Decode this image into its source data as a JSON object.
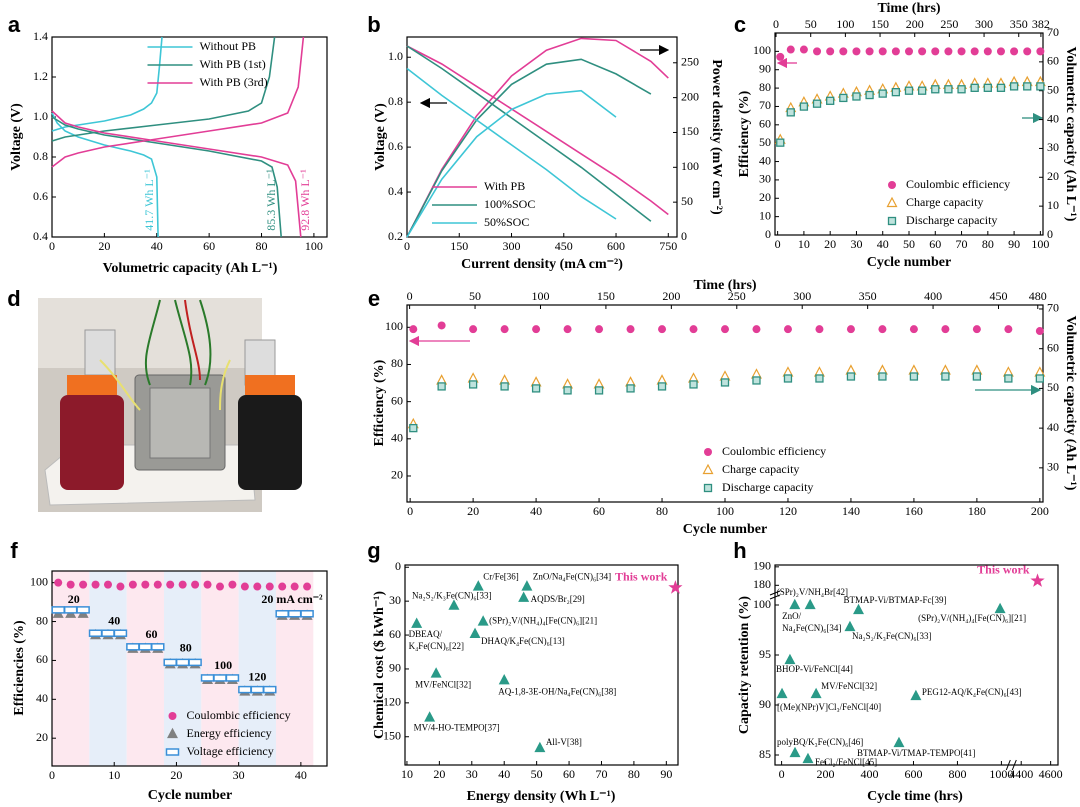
{
  "chart_data": [
    {
      "type": "line",
      "panel": "a",
      "xlabel": "Volumetric capacity (Ah L⁻¹)",
      "ylabel": "Voltage (V)",
      "xlim": [
        0,
        105
      ],
      "ylim": [
        0.4,
        1.4
      ],
      "xticks": [
        0,
        20,
        40,
        60,
        80,
        100
      ],
      "yticks": [
        0.4,
        0.6,
        0.8,
        {
          "value": 1,
          "label": "1.0"
        },
        1.2,
        1.4
      ],
      "legend": "upper center",
      "series": [
        {
          "name": "Without PB",
          "color": "#3ec6d6",
          "x": [
            0,
            2,
            5,
            10,
            20,
            30,
            35,
            38,
            40,
            40.5,
            null,
            0,
            5,
            10,
            20,
            30,
            35,
            38,
            40,
            41,
            42
          ],
          "values": [
            1.02,
            0.97,
            0.93,
            0.9,
            0.86,
            0.83,
            0.81,
            0.79,
            0.7,
            0.4,
            null,
            0.93,
            0.95,
            0.96,
            0.98,
            1.01,
            1.04,
            1.07,
            1.12,
            1.25,
            1.4
          ]
        },
        {
          "name": "With PB (1st)",
          "color": "#2f8f80",
          "x": [
            0,
            5,
            10,
            20,
            40,
            60,
            80,
            84,
            86,
            87.5,
            null,
            0,
            5,
            10,
            20,
            40,
            60,
            75,
            80,
            83,
            85
          ],
          "values": [
            1.0,
            0.96,
            0.94,
            0.91,
            0.87,
            0.83,
            0.78,
            0.75,
            0.65,
            0.4,
            null,
            0.88,
            0.9,
            0.91,
            0.93,
            0.96,
            0.99,
            1.03,
            1.07,
            1.2,
            1.4
          ]
        },
        {
          "name": "With PB (3rd)",
          "color": "#e23d96",
          "x": [
            0,
            5,
            10,
            20,
            40,
            60,
            80,
            90,
            93,
            95,
            null,
            0,
            5,
            10,
            20,
            40,
            60,
            80,
            90,
            94,
            96
          ],
          "values": [
            1.03,
            0.97,
            0.95,
            0.92,
            0.88,
            0.84,
            0.8,
            0.76,
            0.68,
            0.4,
            null,
            0.75,
            0.8,
            0.82,
            0.85,
            0.89,
            0.93,
            0.97,
            1.02,
            1.15,
            1.4
          ]
        }
      ],
      "annotations": [
        "41.7 Wh L⁻¹",
        "85.3 Wh L⁻¹",
        "92.8 Wh L⁻¹"
      ]
    },
    {
      "type": "line",
      "panel": "b",
      "xlabel": "Current density (mA cm⁻²)",
      "ylabel": "Voltage (V)",
      "y2label": "Power density (mW cm⁻²)",
      "xlim": [
        0,
        775
      ],
      "ylim": [
        0.2,
        1.09
      ],
      "y2lim": [
        0,
        287
      ],
      "xticks": [
        0,
        150,
        300,
        450,
        600,
        750
      ],
      "yticks": [
        0.2,
        0.4,
        0.6,
        0.8,
        {
          "value": 1,
          "label": "1.0"
        }
      ],
      "y2ticks": [
        0,
        50,
        100,
        150,
        200,
        250
      ],
      "legend": "lower left",
      "series": [
        {
          "name": "With PB",
          "color": "#e23d96",
          "x": [
            0,
            100,
            200,
            300,
            400,
            500,
            600,
            700,
            750
          ],
          "values": [
            1.05,
            0.97,
            0.87,
            0.77,
            0.67,
            0.57,
            0.47,
            0.36,
            0.3
          ],
          "power": [
            0,
            97,
            174,
            231,
            268,
            285,
            282,
            252,
            228
          ]
        },
        {
          "name": "100%SOC",
          "color": "#2f8f80",
          "x": [
            0,
            100,
            200,
            300,
            400,
            500,
            600,
            700
          ],
          "values": [
            1.05,
            0.95,
            0.84,
            0.73,
            0.62,
            0.51,
            0.39,
            0.27
          ],
          "power": [
            0,
            95,
            168,
            219,
            248,
            255,
            234,
            205
          ]
        },
        {
          "name": "50%SOC",
          "color": "#3ec6d6",
          "x": [
            0,
            100,
            200,
            300,
            400,
            500,
            600
          ],
          "values": [
            0.95,
            0.83,
            0.72,
            0.61,
            0.5,
            0.38,
            0.28
          ],
          "power": [
            0,
            83,
            144,
            183,
            205,
            210,
            172
          ]
        }
      ]
    },
    {
      "type": "scatter",
      "panel": "c",
      "xlabel": "Cycle number",
      "ylabel": "Efficiency (%)",
      "y2label": "Volumetric capacity (Ah L⁻¹)",
      "x2label": "Time (hrs)",
      "xlim": [
        -1,
        101
      ],
      "ylim": [
        0,
        110
      ],
      "y2lim": [
        0,
        70
      ],
      "x2lim": [
        -1.5,
        385
      ],
      "xticks": [
        0,
        10,
        20,
        30,
        40,
        50,
        60,
        70,
        80,
        90,
        100
      ],
      "yticks": [
        0,
        10,
        20,
        30,
        40,
        50,
        60,
        70,
        80,
        90,
        100
      ],
      "y2ticks": [
        0,
        10,
        20,
        30,
        40,
        50,
        60,
        70
      ],
      "x2ticks": [
        0,
        50,
        100,
        150,
        200,
        250,
        300,
        350,
        382
      ],
      "legend": "lower center",
      "x": [
        1,
        5,
        10,
        15,
        20,
        25,
        30,
        35,
        40,
        45,
        50,
        55,
        60,
        65,
        70,
        75,
        80,
        85,
        90,
        95,
        100
      ],
      "series": [
        {
          "name": "Coulombic efficiency",
          "color": "#e23d96",
          "marker": "circle",
          "values": [
            97,
            101,
            101,
            100,
            100,
            100,
            100,
            100,
            100,
            100,
            100,
            100,
            100,
            100,
            100,
            100,
            100,
            100,
            100,
            100,
            100
          ]
        },
        {
          "name": "Charge capacity",
          "color": "#e8a030",
          "marker": "triangle-open",
          "axis": "y2",
          "values": [
            33,
            44,
            46,
            47,
            48,
            49,
            49.5,
            50,
            50.5,
            51,
            51.5,
            51.5,
            52,
            52,
            52,
            52.5,
            52.5,
            52.5,
            53,
            53,
            53
          ]
        },
        {
          "name": "Discharge capacity",
          "color": "#2f8f80",
          "marker": "square",
          "axis": "y2",
          "values": [
            32,
            42.5,
            44.5,
            45.5,
            46.5,
            47.5,
            48,
            48.5,
            49,
            49.5,
            50,
            50,
            50.5,
            50.5,
            50.5,
            51,
            51,
            51,
            51.5,
            51.5,
            51.5
          ]
        }
      ]
    },
    {
      "type": "image",
      "panel": "d"
    },
    {
      "type": "scatter",
      "panel": "e",
      "xlabel": "Cycle number",
      "ylabel": "Efficiency (%)",
      "y2label": "Volumetric capacity (Ah L⁻¹)",
      "x2label": "Time (hrs)",
      "xlim": [
        -1,
        201
      ],
      "ylim": [
        6,
        112
      ],
      "y2lim": [
        21.4,
        71
      ],
      "x2lim": [
        -2,
        484
      ],
      "xticks": [
        0,
        20,
        40,
        60,
        80,
        100,
        120,
        140,
        160,
        180,
        200
      ],
      "yticks": [
        20,
        40,
        60,
        80,
        100
      ],
      "y2ticks": [
        30,
        40,
        50,
        60,
        70
      ],
      "x2ticks": [
        0,
        50,
        100,
        150,
        200,
        250,
        300,
        350,
        400,
        450,
        480
      ],
      "legend": "lower center",
      "x": [
        1,
        10,
        20,
        30,
        40,
        50,
        60,
        70,
        80,
        90,
        100,
        110,
        120,
        130,
        140,
        150,
        160,
        170,
        180,
        190,
        200
      ],
      "series": [
        {
          "name": "Coulombic efficiency",
          "color": "#e23d96",
          "marker": "circle",
          "values": [
            99,
            101,
            99,
            99,
            99,
            99,
            99,
            99,
            99,
            99,
            99,
            99,
            99,
            99,
            99,
            99,
            99,
            99,
            99,
            99,
            98
          ]
        },
        {
          "name": "Charge capacity",
          "color": "#e8a030",
          "marker": "triangle-open",
          "axis": "y2",
          "values": [
            41,
            52,
            52.5,
            52,
            51.5,
            51,
            51,
            51.5,
            52,
            52.5,
            53,
            53.5,
            54,
            54,
            54.5,
            54.5,
            54.5,
            54.5,
            54.5,
            54,
            54
          ]
        },
        {
          "name": "Discharge capacity",
          "color": "#2f8f80",
          "marker": "square",
          "axis": "y2",
          "values": [
            40,
            50.5,
            51,
            50.5,
            50,
            49.5,
            49.5,
            50,
            50.5,
            51,
            51.5,
            52,
            52.5,
            52.5,
            53,
            53,
            53,
            53,
            53,
            52.5,
            52.5
          ]
        }
      ]
    },
    {
      "type": "scatter",
      "panel": "f",
      "xlabel": "Cycle number",
      "ylabel": "Efficiencies (%)",
      "xlim": [
        0,
        44.2
      ],
      "ylim": [
        5.7,
        106
      ],
      "xticks": [
        0,
        10,
        20,
        30,
        40
      ],
      "yticks": [
        20,
        40,
        60,
        80,
        100
      ],
      "legend": "lower center",
      "x": [
        1,
        3,
        5,
        7,
        9,
        11,
        13,
        15,
        17,
        19,
        21,
        23,
        25,
        27,
        29,
        31,
        33,
        35,
        37,
        39,
        41
      ],
      "series": [
        {
          "name": "Coulombic efficiency",
          "color": "#e23d96",
          "marker": "circle",
          "values": [
            100,
            99,
            99,
            99,
            99,
            98,
            99,
            99,
            99,
            99,
            99,
            99,
            99,
            98,
            99,
            98,
            98,
            98,
            98,
            98,
            98
          ]
        },
        {
          "name": "Energy efficiency",
          "color": "#808080",
          "marker": "triangle",
          "values": [
            84,
            84,
            84,
            73,
            73,
            73,
            66,
            66,
            66,
            58,
            58,
            58,
            50,
            50,
            50,
            44,
            44,
            44,
            83,
            83,
            83
          ]
        },
        {
          "name": "Voltage efficiency",
          "color": "#3a8fd8",
          "marker": "rect-open",
          "values": [
            86,
            86,
            86,
            74,
            74,
            74,
            67,
            67,
            67,
            59,
            59,
            59,
            51,
            51,
            51,
            45,
            45,
            45,
            84,
            84,
            84
          ]
        }
      ],
      "annotations": [
        "20",
        "40",
        "60",
        "80",
        "100",
        "120",
        "20 mA cm⁻²"
      ]
    },
    {
      "type": "scatter",
      "panel": "g",
      "xlabel": "Energy density (Wh L⁻¹)",
      "ylabel": "Chemical cost ($ kWh⁻¹)",
      "xlim": [
        9.4,
        93.6
      ],
      "ylim": [
        -2,
        175
      ],
      "yreverse": true,
      "xticks": [
        10,
        20,
        30,
        40,
        50,
        60,
        70,
        80,
        90
      ],
      "yticks": [
        0,
        30,
        60,
        90,
        120,
        150
      ],
      "marker_color": "#2a9a88",
      "points": [
        {
          "label": [
            "Cr/Fe[36]"
          ],
          "x": 32,
          "y": 17
        },
        {
          "label": [
            "ZnO/Na₄Fe(CN)₆[34]"
          ],
          "x": 47,
          "y": 17
        },
        {
          "label": [
            "AQDS/Br₂[29]"
          ],
          "x": 46,
          "y": 27
        },
        {
          "label": [
            "Na₂S₂/K₃Fe(CN)₆[33]"
          ],
          "x": 24.5,
          "y": 34
        },
        {
          "label": [
            "(SPr)₂V/(NH₄)₄[Fe(CN)₆][21]"
          ],
          "x": 33.5,
          "y": 48
        },
        {
          "label": [
            "DBEAQ/",
            "K₄Fe(CN)₆[22]"
          ],
          "x": 13,
          "y": 50
        },
        {
          "label": [
            "DHAQ/K₄Fe(CN)₆[13]"
          ],
          "x": 31,
          "y": 59
        },
        {
          "label": [
            "MV/FeNCl[32]"
          ],
          "x": 19,
          "y": 94
        },
        {
          "label": [
            "AQ-1,8-3E-OH/Na₄Fe(CN)₆[38]"
          ],
          "x": 40,
          "y": 100
        },
        {
          "label": [
            "MV/4-HO-TEMPO[37]"
          ],
          "x": 17,
          "y": 133
        },
        {
          "label": [
            "All-V[38]"
          ],
          "x": 51,
          "y": 160
        }
      ],
      "highlight": {
        "label": "This work",
        "x": 92.8,
        "y": 18,
        "color": "#e23d96"
      }
    },
    {
      "type": "scatter",
      "panel": "h",
      "xlabel": "Cycle time (hrs)",
      "ylabel": "Capacity retention (%)",
      "xlim": [
        -30,
        4650
      ],
      "ylim": [
        84,
        191
      ],
      "xbreak": [
        1000,
        4400
      ],
      "ybreak": [
        101,
        178
      ],
      "xticks": [
        0,
        200,
        400,
        600,
        800,
        1000,
        4400,
        4600
      ],
      "yticks": [
        85,
        90,
        95,
        100,
        180,
        190
      ],
      "marker_color": "#2a9a88",
      "points": [
        {
          "label": [
            "(SPr)₂V/NH₄Br[42]"
          ],
          "x": 60,
          "y": 100
        },
        {
          "label": [
            "ZnO/",
            "Na₄Fe(CN)₆[34]"
          ],
          "x": 130,
          "y": 100
        },
        {
          "label": [
            "BTMAP-Vi/BTMAP-Fc[39]"
          ],
          "x": 350,
          "y": 99.5
        },
        {
          "label": [
            "Na₂S₂/K₃Fe(CN)₆[33]"
          ],
          "x": 311,
          "y": 97.8
        },
        {
          "label": [
            "(SPr)₂V/(NH₄)₄[Fe(CN)₆][21]"
          ],
          "x": 994,
          "y": 99.6
        },
        {
          "label": [
            "BHOP-Vi/FeNCl[44]"
          ],
          "x": 38,
          "y": 94.5
        },
        {
          "label": [
            "MV/FeNCl[32]"
          ],
          "x": 157,
          "y": 91.1
        },
        {
          "label": [
            "[(Me)(NPr)V]Cl₃/FeNCl[40]"
          ],
          "x": 2,
          "y": 91.1
        },
        {
          "label": [
            "PEG12-AQ/K₄Fe(CN)₆[43]"
          ],
          "x": 611,
          "y": 90.9
        },
        {
          "label": [
            "polyBQ/K₃Fe(CN)₆[46]"
          ],
          "x": 61,
          "y": 85.2
        },
        {
          "label": [
            "FeCl₂/FeNCl[45]"
          ],
          "x": 120,
          "y": 84.6
        },
        {
          "label": [
            "BTMAP-Vi/TMAP-TEMPO[41]"
          ],
          "x": 534,
          "y": 86.2
        }
      ],
      "highlight": {
        "label": "This work",
        "x": 4511,
        "y": 182.4,
        "color": "#e23d96"
      }
    }
  ]
}
